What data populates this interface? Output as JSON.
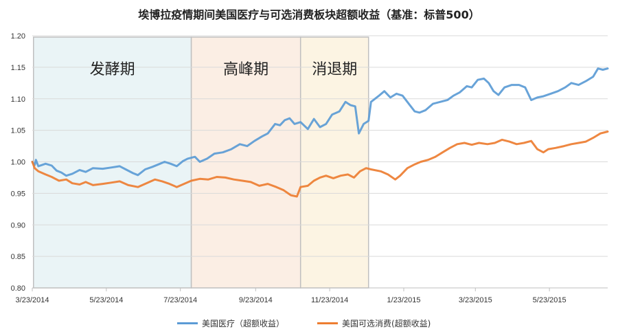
{
  "chart_data": {
    "type": "line",
    "title": "埃博拉疫情期间美国医疗与可选消费板块超额收益（基准：标普500）",
    "xlabel": "",
    "ylabel": "",
    "ylim": [
      0.8,
      1.2
    ],
    "yticks": [
      "0.80",
      "0.85",
      "0.90",
      "0.95",
      "1.00",
      "1.05",
      "1.10",
      "1.15",
      "1.20"
    ],
    "x_range": [
      "2014-03-23",
      "2015-07-10"
    ],
    "x_ticks": [
      {
        "date": "2014-03-23",
        "label": "3/23/2014"
      },
      {
        "date": "2014-05-23",
        "label": "5/23/2014"
      },
      {
        "date": "2014-07-23",
        "label": "7/23/2014"
      },
      {
        "date": "2014-09-23",
        "label": "9/23/2014"
      },
      {
        "date": "2014-11-23",
        "label": "11/23/2014"
      },
      {
        "date": "2015-01-23",
        "label": "1/23/2015"
      },
      {
        "date": "2015-03-23",
        "label": "3/23/2015"
      },
      {
        "date": "2015-05-23",
        "label": "5/23/2015"
      }
    ],
    "grid": "horizontal",
    "legend_position": "bottom",
    "phases": [
      {
        "label": "发酵期",
        "start": "2014-03-24",
        "end": "2014-08-01",
        "color": "#eaf4f6"
      },
      {
        "label": "高峰期",
        "start": "2014-08-01",
        "end": "2014-10-30",
        "color": "#fbeee4"
      },
      {
        "label": "消退期",
        "start": "2014-10-30",
        "end": "2014-12-25",
        "color": "#fcf4e3"
      }
    ],
    "series": [
      {
        "name": "美国医疗（超额收益）",
        "color": "#5b9bd5",
        "points": [
          [
            "2014-03-23",
            1.0
          ],
          [
            "2014-03-25",
            0.995
          ],
          [
            "2014-03-26",
            1.003
          ],
          [
            "2014-03-28",
            0.993
          ],
          [
            "2014-04-03",
            0.997
          ],
          [
            "2014-04-08",
            0.994
          ],
          [
            "2014-04-12",
            0.986
          ],
          [
            "2014-04-16",
            0.983
          ],
          [
            "2014-04-20",
            0.978
          ],
          [
            "2014-04-25",
            0.981
          ],
          [
            "2014-05-01",
            0.987
          ],
          [
            "2014-05-06",
            0.984
          ],
          [
            "2014-05-12",
            0.99
          ],
          [
            "2014-05-20",
            0.989
          ],
          [
            "2014-05-27",
            0.991
          ],
          [
            "2014-06-03",
            0.993
          ],
          [
            "2014-06-08",
            0.988
          ],
          [
            "2014-06-14",
            0.982
          ],
          [
            "2014-06-18",
            0.979
          ],
          [
            "2014-06-24",
            0.988
          ],
          [
            "2014-06-30",
            0.992
          ],
          [
            "2014-07-05",
            0.996
          ],
          [
            "2014-07-10",
            1.0
          ],
          [
            "2014-07-15",
            0.997
          ],
          [
            "2014-07-20",
            0.993
          ],
          [
            "2014-07-25",
            1.001
          ],
          [
            "2014-07-29",
            1.005
          ],
          [
            "2014-08-04",
            1.008
          ],
          [
            "2014-08-08",
            1.0
          ],
          [
            "2014-08-14",
            1.005
          ],
          [
            "2014-08-20",
            1.013
          ],
          [
            "2014-08-27",
            1.015
          ],
          [
            "2014-09-03",
            1.02
          ],
          [
            "2014-09-10",
            1.028
          ],
          [
            "2014-09-16",
            1.025
          ],
          [
            "2014-09-22",
            1.033
          ],
          [
            "2014-09-28",
            1.04
          ],
          [
            "2014-10-03",
            1.045
          ],
          [
            "2014-10-09",
            1.06
          ],
          [
            "2014-10-13",
            1.058
          ],
          [
            "2014-10-17",
            1.066
          ],
          [
            "2014-10-21",
            1.069
          ],
          [
            "2014-10-25",
            1.06
          ],
          [
            "2014-10-30",
            1.063
          ],
          [
            "2014-11-05",
            1.052
          ],
          [
            "2014-11-10",
            1.068
          ],
          [
            "2014-11-15",
            1.055
          ],
          [
            "2014-11-20",
            1.06
          ],
          [
            "2014-11-25",
            1.075
          ],
          [
            "2014-12-01",
            1.08
          ],
          [
            "2014-12-06",
            1.095
          ],
          [
            "2014-12-10",
            1.09
          ],
          [
            "2014-12-14",
            1.088
          ],
          [
            "2014-12-17",
            1.045
          ],
          [
            "2014-12-21",
            1.06
          ],
          [
            "2014-12-25",
            1.065
          ],
          [
            "2014-12-27",
            1.095
          ],
          [
            "2015-01-02",
            1.104
          ],
          [
            "2015-01-07",
            1.112
          ],
          [
            "2015-01-12",
            1.102
          ],
          [
            "2015-01-17",
            1.108
          ],
          [
            "2015-01-22",
            1.105
          ],
          [
            "2015-01-28",
            1.09
          ],
          [
            "2015-02-01",
            1.08
          ],
          [
            "2015-02-05",
            1.078
          ],
          [
            "2015-02-10",
            1.082
          ],
          [
            "2015-02-16",
            1.092
          ],
          [
            "2015-02-22",
            1.095
          ],
          [
            "2015-02-28",
            1.098
          ],
          [
            "2015-03-05",
            1.105
          ],
          [
            "2015-03-10",
            1.11
          ],
          [
            "2015-03-16",
            1.12
          ],
          [
            "2015-03-20",
            1.118
          ],
          [
            "2015-03-25",
            1.13
          ],
          [
            "2015-03-30",
            1.132
          ],
          [
            "2015-04-03",
            1.125
          ],
          [
            "2015-04-07",
            1.112
          ],
          [
            "2015-04-11",
            1.106
          ],
          [
            "2015-04-16",
            1.118
          ],
          [
            "2015-04-22",
            1.122
          ],
          [
            "2015-04-28",
            1.122
          ],
          [
            "2015-05-03",
            1.118
          ],
          [
            "2015-05-08",
            1.098
          ],
          [
            "2015-05-13",
            1.102
          ],
          [
            "2015-05-18",
            1.104
          ],
          [
            "2015-05-24",
            1.108
          ],
          [
            "2015-05-30",
            1.112
          ],
          [
            "2015-06-05",
            1.118
          ],
          [
            "2015-06-10",
            1.125
          ],
          [
            "2015-06-16",
            1.122
          ],
          [
            "2015-06-22",
            1.128
          ],
          [
            "2015-06-28",
            1.135
          ],
          [
            "2015-07-02",
            1.148
          ],
          [
            "2015-07-06",
            1.146
          ],
          [
            "2015-07-10",
            1.148
          ]
        ]
      },
      {
        "name": "美国可选消费(超额收益)",
        "color": "#ed7d31",
        "points": [
          [
            "2014-03-23",
            1.0
          ],
          [
            "2014-03-25",
            0.99
          ],
          [
            "2014-03-28",
            0.985
          ],
          [
            "2014-04-03",
            0.98
          ],
          [
            "2014-04-08",
            0.976
          ],
          [
            "2014-04-14",
            0.97
          ],
          [
            "2014-04-20",
            0.972
          ],
          [
            "2014-04-25",
            0.966
          ],
          [
            "2014-05-01",
            0.964
          ],
          [
            "2014-05-06",
            0.968
          ],
          [
            "2014-05-12",
            0.963
          ],
          [
            "2014-05-20",
            0.965
          ],
          [
            "2014-05-27",
            0.967
          ],
          [
            "2014-06-03",
            0.969
          ],
          [
            "2014-06-10",
            0.963
          ],
          [
            "2014-06-18",
            0.96
          ],
          [
            "2014-06-25",
            0.966
          ],
          [
            "2014-07-02",
            0.972
          ],
          [
            "2014-07-08",
            0.969
          ],
          [
            "2014-07-14",
            0.965
          ],
          [
            "2014-07-20",
            0.96
          ],
          [
            "2014-07-26",
            0.965
          ],
          [
            "2014-08-01",
            0.97
          ],
          [
            "2014-08-08",
            0.973
          ],
          [
            "2014-08-15",
            0.972
          ],
          [
            "2014-08-22",
            0.976
          ],
          [
            "2014-08-29",
            0.975
          ],
          [
            "2014-09-05",
            0.972
          ],
          [
            "2014-09-12",
            0.97
          ],
          [
            "2014-09-19",
            0.968
          ],
          [
            "2014-09-26",
            0.962
          ],
          [
            "2014-10-03",
            0.965
          ],
          [
            "2014-10-10",
            0.96
          ],
          [
            "2014-10-16",
            0.955
          ],
          [
            "2014-10-22",
            0.947
          ],
          [
            "2014-10-27",
            0.945
          ],
          [
            "2014-10-30",
            0.96
          ],
          [
            "2014-11-05",
            0.962
          ],
          [
            "2014-11-10",
            0.97
          ],
          [
            "2014-11-15",
            0.975
          ],
          [
            "2014-11-20",
            0.978
          ],
          [
            "2014-11-26",
            0.974
          ],
          [
            "2014-12-02",
            0.978
          ],
          [
            "2014-12-08",
            0.98
          ],
          [
            "2014-12-13",
            0.975
          ],
          [
            "2014-12-18",
            0.985
          ],
          [
            "2014-12-23",
            0.99
          ],
          [
            "2014-12-27",
            0.988
          ],
          [
            "2015-01-04",
            0.985
          ],
          [
            "2015-01-10",
            0.98
          ],
          [
            "2015-01-16",
            0.972
          ],
          [
            "2015-01-20",
            0.978
          ],
          [
            "2015-01-26",
            0.99
          ],
          [
            "2015-02-01",
            0.996
          ],
          [
            "2015-02-06",
            1.0
          ],
          [
            "2015-02-12",
            1.003
          ],
          [
            "2015-02-18",
            1.008
          ],
          [
            "2015-02-24",
            1.015
          ],
          [
            "2015-03-02",
            1.022
          ],
          [
            "2015-03-08",
            1.028
          ],
          [
            "2015-03-14",
            1.03
          ],
          [
            "2015-03-20",
            1.027
          ],
          [
            "2015-03-26",
            1.03
          ],
          [
            "2015-04-02",
            1.028
          ],
          [
            "2015-04-08",
            1.03
          ],
          [
            "2015-04-14",
            1.035
          ],
          [
            "2015-04-20",
            1.032
          ],
          [
            "2015-04-26",
            1.028
          ],
          [
            "2015-05-02",
            1.03
          ],
          [
            "2015-05-08",
            1.033
          ],
          [
            "2015-05-13",
            1.02
          ],
          [
            "2015-05-18",
            1.015
          ],
          [
            "2015-05-22",
            1.02
          ],
          [
            "2015-05-28",
            1.022
          ],
          [
            "2015-06-04",
            1.025
          ],
          [
            "2015-06-10",
            1.028
          ],
          [
            "2015-06-16",
            1.03
          ],
          [
            "2015-06-22",
            1.032
          ],
          [
            "2015-06-28",
            1.038
          ],
          [
            "2015-07-04",
            1.045
          ],
          [
            "2015-07-10",
            1.048
          ]
        ]
      }
    ]
  }
}
